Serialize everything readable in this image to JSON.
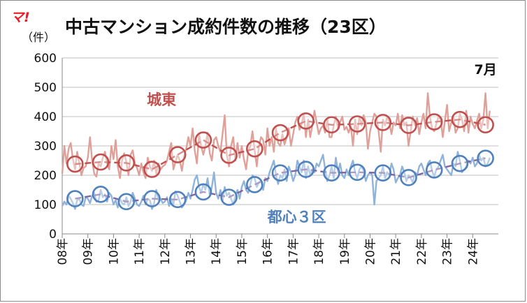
{
  "logo_text": "マ!",
  "chart_data": {
    "type": "line",
    "title": "中古マンション成約件数の推移（23区）",
    "y_unit_label": "（件）",
    "ylim": [
      0,
      600
    ],
    "yticks": [
      0,
      100,
      200,
      300,
      400,
      500,
      600
    ],
    "x_tick_labels": [
      "08年",
      "09年",
      "10年",
      "11年",
      "12年",
      "13年",
      "14年",
      "15年",
      "16年",
      "17年",
      "18年",
      "19年",
      "20年",
      "21年",
      "22年",
      "23年",
      "24年"
    ],
    "x_range": [
      2008.0,
      2025.0
    ],
    "grid": "horizontal",
    "annotations": [
      {
        "text": "7月",
        "x": 2024.5,
        "y": 545
      }
    ],
    "series": [
      {
        "name": "城東",
        "color": "#e0a09a",
        "trend_color": "#c0504d",
        "monthly": {
          "start": 2008.0,
          "step": 0.0833333,
          "values": [
            205,
            300,
            240,
            290,
            310,
            255,
            220,
            280,
            240,
            200,
            225,
            230,
            260,
            330,
            250,
            205,
            195,
            240,
            230,
            260,
            280,
            240,
            220,
            300,
            255,
            320,
            230,
            190,
            250,
            275,
            245,
            200,
            270,
            285,
            240,
            225,
            200,
            240,
            210,
            190,
            260,
            230,
            215,
            250,
            205,
            240,
            220,
            230,
            235,
            250,
            280,
            310,
            220,
            245,
            270,
            250,
            215,
            265,
            290,
            330,
            300,
            360,
            285,
            240,
            340,
            300,
            270,
            300,
            345,
            275,
            250,
            320,
            330,
            300,
            280,
            340,
            405,
            270,
            230,
            300,
            330,
            250,
            310,
            260,
            300,
            255,
            220,
            280,
            300,
            350,
            285,
            230,
            300,
            330,
            320,
            270,
            360,
            300,
            330,
            280,
            360,
            310,
            300,
            340,
            305,
            330,
            360,
            300,
            340,
            380,
            400,
            355,
            375,
            410,
            330,
            390,
            330,
            370,
            420,
            380,
            340,
            360,
            370,
            345,
            390,
            330,
            330,
            370,
            400,
            360,
            380,
            400,
            355,
            365,
            345,
            370,
            300,
            390,
            340,
            400,
            370,
            405,
            380,
            290,
            350,
            380,
            410,
            400,
            350,
            280,
            390,
            370,
            400,
            380,
            340,
            380,
            370,
            410,
            360,
            405,
            370,
            380,
            300,
            350,
            400,
            370,
            395,
            340,
            380,
            410,
            360,
            480,
            400,
            360,
            350,
            375,
            400,
            390,
            330,
            385,
            440,
            350,
            380,
            400,
            345,
            360,
            410,
            390,
            350,
            420,
            345,
            400,
            375,
            360,
            385,
            410,
            360,
            390,
            480,
            360,
            420
          ]
        },
        "annual_points": [
          {
            "label": "08年",
            "x": 2008.5,
            "y": 238
          },
          {
            "label": "09年",
            "x": 2009.5,
            "y": 245
          },
          {
            "label": "10年",
            "x": 2010.5,
            "y": 242
          },
          {
            "label": "11年",
            "x": 2011.5,
            "y": 220
          },
          {
            "label": "12年",
            "x": 2012.5,
            "y": 270
          },
          {
            "label": "13年",
            "x": 2013.5,
            "y": 320
          },
          {
            "label": "14年",
            "x": 2014.5,
            "y": 268
          },
          {
            "label": "15年",
            "x": 2015.5,
            "y": 290
          },
          {
            "label": "16年",
            "x": 2016.5,
            "y": 345
          },
          {
            "label": "17年",
            "x": 2017.5,
            "y": 385
          },
          {
            "label": "18年",
            "x": 2018.5,
            "y": 372
          },
          {
            "label": "19年",
            "x": 2019.5,
            "y": 375
          },
          {
            "label": "20年",
            "x": 2020.5,
            "y": 380
          },
          {
            "label": "21年",
            "x": 2021.5,
            "y": 370
          },
          {
            "label": "22年",
            "x": 2022.5,
            "y": 382
          },
          {
            "label": "23年",
            "x": 2023.5,
            "y": 390
          },
          {
            "label": "24年",
            "x": 2024.5,
            "y": 372
          }
        ],
        "label_pos": {
          "x": 2011.3,
          "y": 440
        }
      },
      {
        "name": "都心３区",
        "color": "#8fb3d9",
        "trend_color": "#8064a2",
        "monthly": {
          "start": 2008.0,
          "step": 0.0833333,
          "values": [
            95,
            110,
            100,
            130,
            120,
            105,
            85,
            115,
            120,
            100,
            95,
            125,
            120,
            105,
            130,
            140,
            110,
            115,
            150,
            125,
            135,
            110,
            140,
            130,
            100,
            115,
            90,
            120,
            105,
            100,
            125,
            95,
            110,
            140,
            120,
            100,
            95,
            110,
            130,
            100,
            120,
            115,
            85,
            105,
            150,
            115,
            120,
            105,
            110,
            125,
            95,
            120,
            100,
            145,
            130,
            110,
            90,
            100,
            115,
            140,
            120,
            150,
            185,
            200,
            160,
            140,
            170,
            150,
            190,
            130,
            160,
            210,
            140,
            120,
            150,
            110,
            160,
            130,
            140,
            120,
            100,
            130,
            150,
            120,
            160,
            180,
            150,
            140,
            170,
            200,
            190,
            160,
            175,
            180,
            150,
            190,
            180,
            210,
            230,
            250,
            200,
            170,
            200,
            190,
            220,
            180,
            230,
            210,
            180,
            200,
            250,
            230,
            210,
            250,
            190,
            230,
            200,
            220,
            210,
            240,
            230,
            250,
            270,
            220,
            180,
            200,
            230,
            190,
            260,
            210,
            240,
            200,
            190,
            220,
            200,
            230,
            250,
            210,
            190,
            220,
            230,
            215,
            180,
            200,
            210,
            200,
            100,
            180,
            190,
            200,
            230,
            190,
            210,
            200,
            240,
            220,
            175,
            190,
            200,
            230,
            210,
            180,
            200,
            190,
            175,
            210,
            200,
            230,
            240,
            220,
            200,
            240,
            250,
            215,
            195,
            220,
            230,
            250,
            270,
            230,
            220,
            210,
            200,
            240,
            230,
            280,
            250,
            210,
            220,
            230,
            250,
            240,
            260,
            230,
            240,
            270,
            250,
            260,
            230,
            240,
            260
          ]
        },
        "annual_points": [
          {
            "label": "08年",
            "x": 2008.5,
            "y": 120
          },
          {
            "label": "09年",
            "x": 2009.5,
            "y": 135
          },
          {
            "label": "10年",
            "x": 2010.5,
            "y": 110
          },
          {
            "label": "11年",
            "x": 2011.5,
            "y": 120
          },
          {
            "label": "12年",
            "x": 2012.5,
            "y": 117
          },
          {
            "label": "13年",
            "x": 2013.5,
            "y": 143
          },
          {
            "label": "14年",
            "x": 2014.5,
            "y": 125
          },
          {
            "label": "15年",
            "x": 2015.5,
            "y": 168
          },
          {
            "label": "16年",
            "x": 2016.5,
            "y": 208
          },
          {
            "label": "17年",
            "x": 2017.5,
            "y": 220
          },
          {
            "label": "18年",
            "x": 2018.5,
            "y": 208
          },
          {
            "label": "19年",
            "x": 2019.5,
            "y": 210
          },
          {
            "label": "20年",
            "x": 2020.5,
            "y": 208
          },
          {
            "label": "21年",
            "x": 2021.5,
            "y": 192
          },
          {
            "label": "22年",
            "x": 2022.5,
            "y": 218
          },
          {
            "label": "23年",
            "x": 2023.5,
            "y": 240
          },
          {
            "label": "24年",
            "x": 2024.5,
            "y": 258
          }
        ],
        "label_pos": {
          "x": 2016.0,
          "y": 40
        }
      }
    ]
  }
}
